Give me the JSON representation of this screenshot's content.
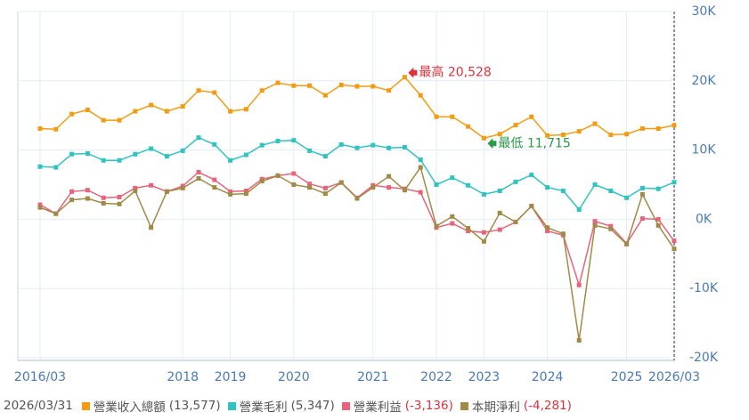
{
  "chart_data": {
    "type": "line",
    "categories": [
      "2016/03",
      null,
      null,
      null,
      null,
      null,
      null,
      null,
      null,
      "2018",
      null,
      null,
      "2019",
      null,
      null,
      null,
      "2020",
      null,
      null,
      null,
      null,
      "2021",
      null,
      null,
      null,
      "2022",
      null,
      null,
      "2023",
      null,
      null,
      null,
      "2024",
      null,
      null,
      null,
      null,
      "2025",
      null,
      null,
      "2026/03"
    ],
    "series": [
      {
        "name": "營業收入總額",
        "color": "#f39c12",
        "legend_value": "(13,577)",
        "values": [
          13100,
          13000,
          15200,
          15800,
          14300,
          14300,
          15600,
          16500,
          15600,
          16300,
          18600,
          18300,
          15600,
          15900,
          18600,
          19700,
          19300,
          19300,
          17900,
          19400,
          19200,
          19200,
          18600,
          20528,
          17900,
          14800,
          14800,
          13400,
          11715,
          12300,
          13600,
          14800,
          12100,
          12200,
          12700,
          13800,
          12200,
          12300,
          13100,
          13100,
          13577
        ]
      },
      {
        "name": "營業毛利",
        "color": "#2ec4c0",
        "legend_value": "(5,347)",
        "values": [
          7600,
          7500,
          9400,
          9500,
          8500,
          8500,
          9400,
          10200,
          9100,
          9900,
          11800,
          10800,
          8500,
          9300,
          10700,
          11300,
          11400,
          9900,
          9100,
          10800,
          10300,
          10700,
          10300,
          10400,
          8600,
          5000,
          6000,
          4900,
          3600,
          4100,
          5400,
          6400,
          4600,
          4100,
          1400,
          5000,
          4100,
          3100,
          4500,
          4400,
          5347
        ]
      },
      {
        "name": "營業利益",
        "color": "#e8647a",
        "legend_value": "(-3,136)",
        "values": [
          2100,
          800,
          4000,
          4200,
          3100,
          3200,
          4500,
          4900,
          4000,
          4800,
          6800,
          5700,
          4000,
          4100,
          5800,
          6300,
          6600,
          5100,
          4500,
          5300,
          3100,
          4900,
          4600,
          4400,
          3900,
          -1200,
          -600,
          -1700,
          -1900,
          -1500,
          -400,
          1900,
          -1700,
          -2300,
          -9500,
          -300,
          -1000,
          -3500,
          100,
          0,
          -3136
        ]
      },
      {
        "name": "本期淨利",
        "color": "#a08a45",
        "legend_value": "(-4,281)",
        "values": [
          1700,
          800,
          2800,
          3000,
          2300,
          2200,
          4100,
          -1200,
          4000,
          4500,
          5900,
          4600,
          3600,
          3700,
          5500,
          6300,
          5000,
          4600,
          3700,
          5300,
          3000,
          4600,
          6200,
          4200,
          7500,
          -1000,
          400,
          -1300,
          -3200,
          900,
          -400,
          1900,
          -1200,
          -2100,
          -17500,
          -900,
          -1400,
          -3600,
          3600,
          -900,
          -4281
        ]
      }
    ],
    "ylim": [
      -20000,
      30000
    ],
    "yticks": [
      {
        "value": -20000,
        "label": "-20K"
      },
      {
        "value": -10000,
        "label": "-10K"
      },
      {
        "value": 0,
        "label": "0K"
      },
      {
        "value": 10000,
        "label": "10K"
      },
      {
        "value": 20000,
        "label": "20K"
      },
      {
        "value": 30000,
        "label": "30K"
      }
    ],
    "grid": true,
    "annotations": [
      {
        "text": "最高 20,528",
        "value": 20528,
        "color": "#e0303c"
      },
      {
        "text": "最低 11,715",
        "value": 11715,
        "color": "#2a9a48"
      }
    ],
    "legend_date": "2026/03/31"
  }
}
